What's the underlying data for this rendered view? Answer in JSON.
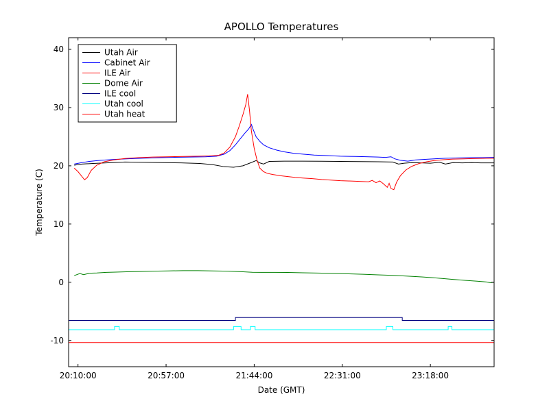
{
  "figure": {
    "title": "APOLLO Temperatures",
    "xlabel": "Date (GMT)",
    "ylabel": "Temperature (C)"
  },
  "chart_data": {
    "type": "line",
    "title": "APOLLO Temperatures",
    "xlabel": "Date (GMT)",
    "ylabel": "Temperature (C)",
    "x_unit": "minutes since 20:10:00 GMT",
    "xlim": [
      -5,
      222
    ],
    "ylim": [
      -14.5,
      42
    ],
    "grid": false,
    "legend_position": "upper left",
    "frame_color": "#000000",
    "background": "#ffffff",
    "xticks": [
      [
        0,
        "20:10:00"
      ],
      [
        47,
        "20:57:00"
      ],
      [
        94,
        "21:44:00"
      ],
      [
        141,
        "22:31:00"
      ],
      [
        188,
        "23:18:00"
      ]
    ],
    "yticks": [
      [
        -10,
        "-10"
      ],
      [
        0,
        "0"
      ],
      [
        10,
        "10"
      ],
      [
        20,
        "20"
      ],
      [
        30,
        "30"
      ],
      [
        40,
        "40"
      ]
    ],
    "series": [
      {
        "name": "Utah Air",
        "color": "#000000",
        "points": [
          [
            -2,
            20.1
          ],
          [
            2,
            20.3
          ],
          [
            8,
            20.4
          ],
          [
            15,
            20.5
          ],
          [
            25,
            20.65
          ],
          [
            35,
            20.6
          ],
          [
            45,
            20.55
          ],
          [
            55,
            20.5
          ],
          [
            65,
            20.4
          ],
          [
            72,
            20.2
          ],
          [
            78,
            19.85
          ],
          [
            83,
            19.75
          ],
          [
            88,
            20.0
          ],
          [
            92,
            20.5
          ],
          [
            95,
            20.9
          ],
          [
            97,
            20.5
          ],
          [
            99,
            20.3
          ],
          [
            102,
            20.75
          ],
          [
            110,
            20.8
          ],
          [
            120,
            20.8
          ],
          [
            130,
            20.78
          ],
          [
            140,
            20.75
          ],
          [
            150,
            20.72
          ],
          [
            160,
            20.7
          ],
          [
            168,
            20.65
          ],
          [
            171,
            20.3
          ],
          [
            174,
            20.45
          ],
          [
            178,
            20.55
          ],
          [
            183,
            20.5
          ],
          [
            188,
            20.45
          ],
          [
            193,
            20.6
          ],
          [
            196,
            20.3
          ],
          [
            200,
            20.55
          ],
          [
            205,
            20.5
          ],
          [
            210,
            20.55
          ],
          [
            215,
            20.5
          ],
          [
            222,
            20.5
          ]
        ]
      },
      {
        "name": "Cabinet Air",
        "color": "#0000ff",
        "points": [
          [
            -2,
            20.3
          ],
          [
            2,
            20.55
          ],
          [
            6,
            20.75
          ],
          [
            12,
            20.95
          ],
          [
            20,
            21.1
          ],
          [
            30,
            21.25
          ],
          [
            40,
            21.35
          ],
          [
            50,
            21.45
          ],
          [
            60,
            21.5
          ],
          [
            68,
            21.55
          ],
          [
            74,
            21.65
          ],
          [
            78,
            22.0
          ],
          [
            81,
            22.6
          ],
          [
            84,
            23.6
          ],
          [
            87,
            24.8
          ],
          [
            89,
            25.6
          ],
          [
            91,
            26.3
          ],
          [
            92.5,
            27.1
          ],
          [
            93.5,
            26.2
          ],
          [
            95,
            25.0
          ],
          [
            97,
            24.2
          ],
          [
            99,
            23.6
          ],
          [
            102,
            23.1
          ],
          [
            106,
            22.7
          ],
          [
            110,
            22.4
          ],
          [
            115,
            22.15
          ],
          [
            120,
            22.0
          ],
          [
            126,
            21.85
          ],
          [
            133,
            21.75
          ],
          [
            140,
            21.65
          ],
          [
            148,
            21.6
          ],
          [
            155,
            21.55
          ],
          [
            160,
            21.5
          ],
          [
            164,
            21.45
          ],
          [
            167,
            21.55
          ],
          [
            169,
            21.2
          ],
          [
            172,
            20.95
          ],
          [
            176,
            20.8
          ],
          [
            180,
            21.0
          ],
          [
            185,
            21.1
          ],
          [
            190,
            21.2
          ],
          [
            196,
            21.3
          ],
          [
            203,
            21.35
          ],
          [
            210,
            21.4
          ],
          [
            216,
            21.4
          ],
          [
            222,
            21.45
          ]
        ]
      },
      {
        "name": "ILE Air",
        "color": "#ff0000",
        "points": [
          [
            -2,
            19.6
          ],
          [
            0,
            19.0
          ],
          [
            2,
            18.2
          ],
          [
            3.5,
            17.6
          ],
          [
            5,
            18.0
          ],
          [
            7,
            19.2
          ],
          [
            10,
            20.1
          ],
          [
            14,
            20.7
          ],
          [
            19,
            21.0
          ],
          [
            25,
            21.25
          ],
          [
            32,
            21.4
          ],
          [
            40,
            21.5
          ],
          [
            48,
            21.55
          ],
          [
            56,
            21.6
          ],
          [
            64,
            21.65
          ],
          [
            70,
            21.7
          ],
          [
            75,
            21.8
          ],
          [
            78,
            22.2
          ],
          [
            81,
            23.2
          ],
          [
            84,
            25.0
          ],
          [
            86,
            26.8
          ],
          [
            88,
            28.8
          ],
          [
            89.5,
            30.5
          ],
          [
            90.5,
            32.3
          ],
          [
            91.5,
            29.5
          ],
          [
            92.5,
            26.0
          ],
          [
            94,
            23.0
          ],
          [
            95.5,
            21.0
          ],
          [
            97,
            19.6
          ],
          [
            99,
            19.0
          ],
          [
            101,
            18.7
          ],
          [
            104,
            18.5
          ],
          [
            108,
            18.3
          ],
          [
            112,
            18.15
          ],
          [
            116,
            18.0
          ],
          [
            120,
            17.9
          ],
          [
            125,
            17.8
          ],
          [
            130,
            17.65
          ],
          [
            135,
            17.55
          ],
          [
            140,
            17.45
          ],
          [
            144,
            17.4
          ],
          [
            148,
            17.35
          ],
          [
            152,
            17.3
          ],
          [
            155,
            17.25
          ],
          [
            157,
            17.5
          ],
          [
            159,
            17.1
          ],
          [
            161,
            17.4
          ],
          [
            163,
            16.9
          ],
          [
            165,
            16.3
          ],
          [
            166,
            17.0
          ],
          [
            167,
            16.1
          ],
          [
            168.5,
            15.9
          ],
          [
            170,
            17.2
          ],
          [
            172,
            18.3
          ],
          [
            175,
            19.3
          ],
          [
            178,
            19.9
          ],
          [
            182,
            20.4
          ],
          [
            186,
            20.7
          ],
          [
            190,
            20.9
          ],
          [
            195,
            21.05
          ],
          [
            200,
            21.15
          ],
          [
            206,
            21.2
          ],
          [
            212,
            21.25
          ],
          [
            218,
            21.3
          ],
          [
            222,
            21.3
          ]
        ]
      },
      {
        "name": "Dome Air",
        "color": "#008000",
        "points": [
          [
            -2,
            1.15
          ],
          [
            1,
            1.5
          ],
          [
            3,
            1.3
          ],
          [
            6,
            1.55
          ],
          [
            10,
            1.6
          ],
          [
            15,
            1.7
          ],
          [
            20,
            1.75
          ],
          [
            26,
            1.8
          ],
          [
            33,
            1.85
          ],
          [
            40,
            1.9
          ],
          [
            48,
            1.95
          ],
          [
            56,
            2.0
          ],
          [
            64,
            2.0
          ],
          [
            72,
            1.95
          ],
          [
            80,
            1.9
          ],
          [
            88,
            1.8
          ],
          [
            93,
            1.72
          ],
          [
            98,
            1.7
          ],
          [
            105,
            1.7
          ],
          [
            112,
            1.68
          ],
          [
            120,
            1.62
          ],
          [
            128,
            1.58
          ],
          [
            136,
            1.52
          ],
          [
            144,
            1.45
          ],
          [
            152,
            1.38
          ],
          [
            160,
            1.28
          ],
          [
            168,
            1.18
          ],
          [
            176,
            1.05
          ],
          [
            184,
            0.9
          ],
          [
            192,
            0.72
          ],
          [
            200,
            0.5
          ],
          [
            207,
            0.32
          ],
          [
            213,
            0.18
          ],
          [
            218,
            0.05
          ],
          [
            220,
            -0.08
          ],
          [
            222,
            0.0
          ]
        ]
      },
      {
        "name": "ILE cool",
        "color": "#000080",
        "points": [
          [
            -5,
            -6.55
          ],
          [
            84,
            -6.55
          ],
          [
            84,
            -6.05
          ],
          [
            173,
            -6.05
          ],
          [
            173,
            -6.55
          ],
          [
            222,
            -6.55
          ]
        ]
      },
      {
        "name": "Utah cool",
        "color": "#00ffff",
        "points": [
          [
            -5,
            -8.15
          ],
          [
            19.5,
            -8.15
          ],
          [
            19.5,
            -7.6
          ],
          [
            22,
            -7.6
          ],
          [
            22,
            -8.15
          ],
          [
            83,
            -8.15
          ],
          [
            83,
            -7.6
          ],
          [
            87,
            -7.6
          ],
          [
            87,
            -8.15
          ],
          [
            92,
            -8.15
          ],
          [
            92,
            -7.6
          ],
          [
            94.5,
            -7.6
          ],
          [
            94.5,
            -8.15
          ],
          [
            164.5,
            -8.15
          ],
          [
            164.5,
            -7.6
          ],
          [
            168,
            -7.6
          ],
          [
            168,
            -8.15
          ],
          [
            197.5,
            -8.15
          ],
          [
            197.5,
            -7.6
          ],
          [
            199.5,
            -7.6
          ],
          [
            199.5,
            -8.15
          ],
          [
            222,
            -8.15
          ]
        ]
      },
      {
        "name": "Utah heat",
        "color": "#ff0000",
        "points": [
          [
            -5,
            -10.35
          ],
          [
            222,
            -10.35
          ]
        ]
      }
    ]
  }
}
